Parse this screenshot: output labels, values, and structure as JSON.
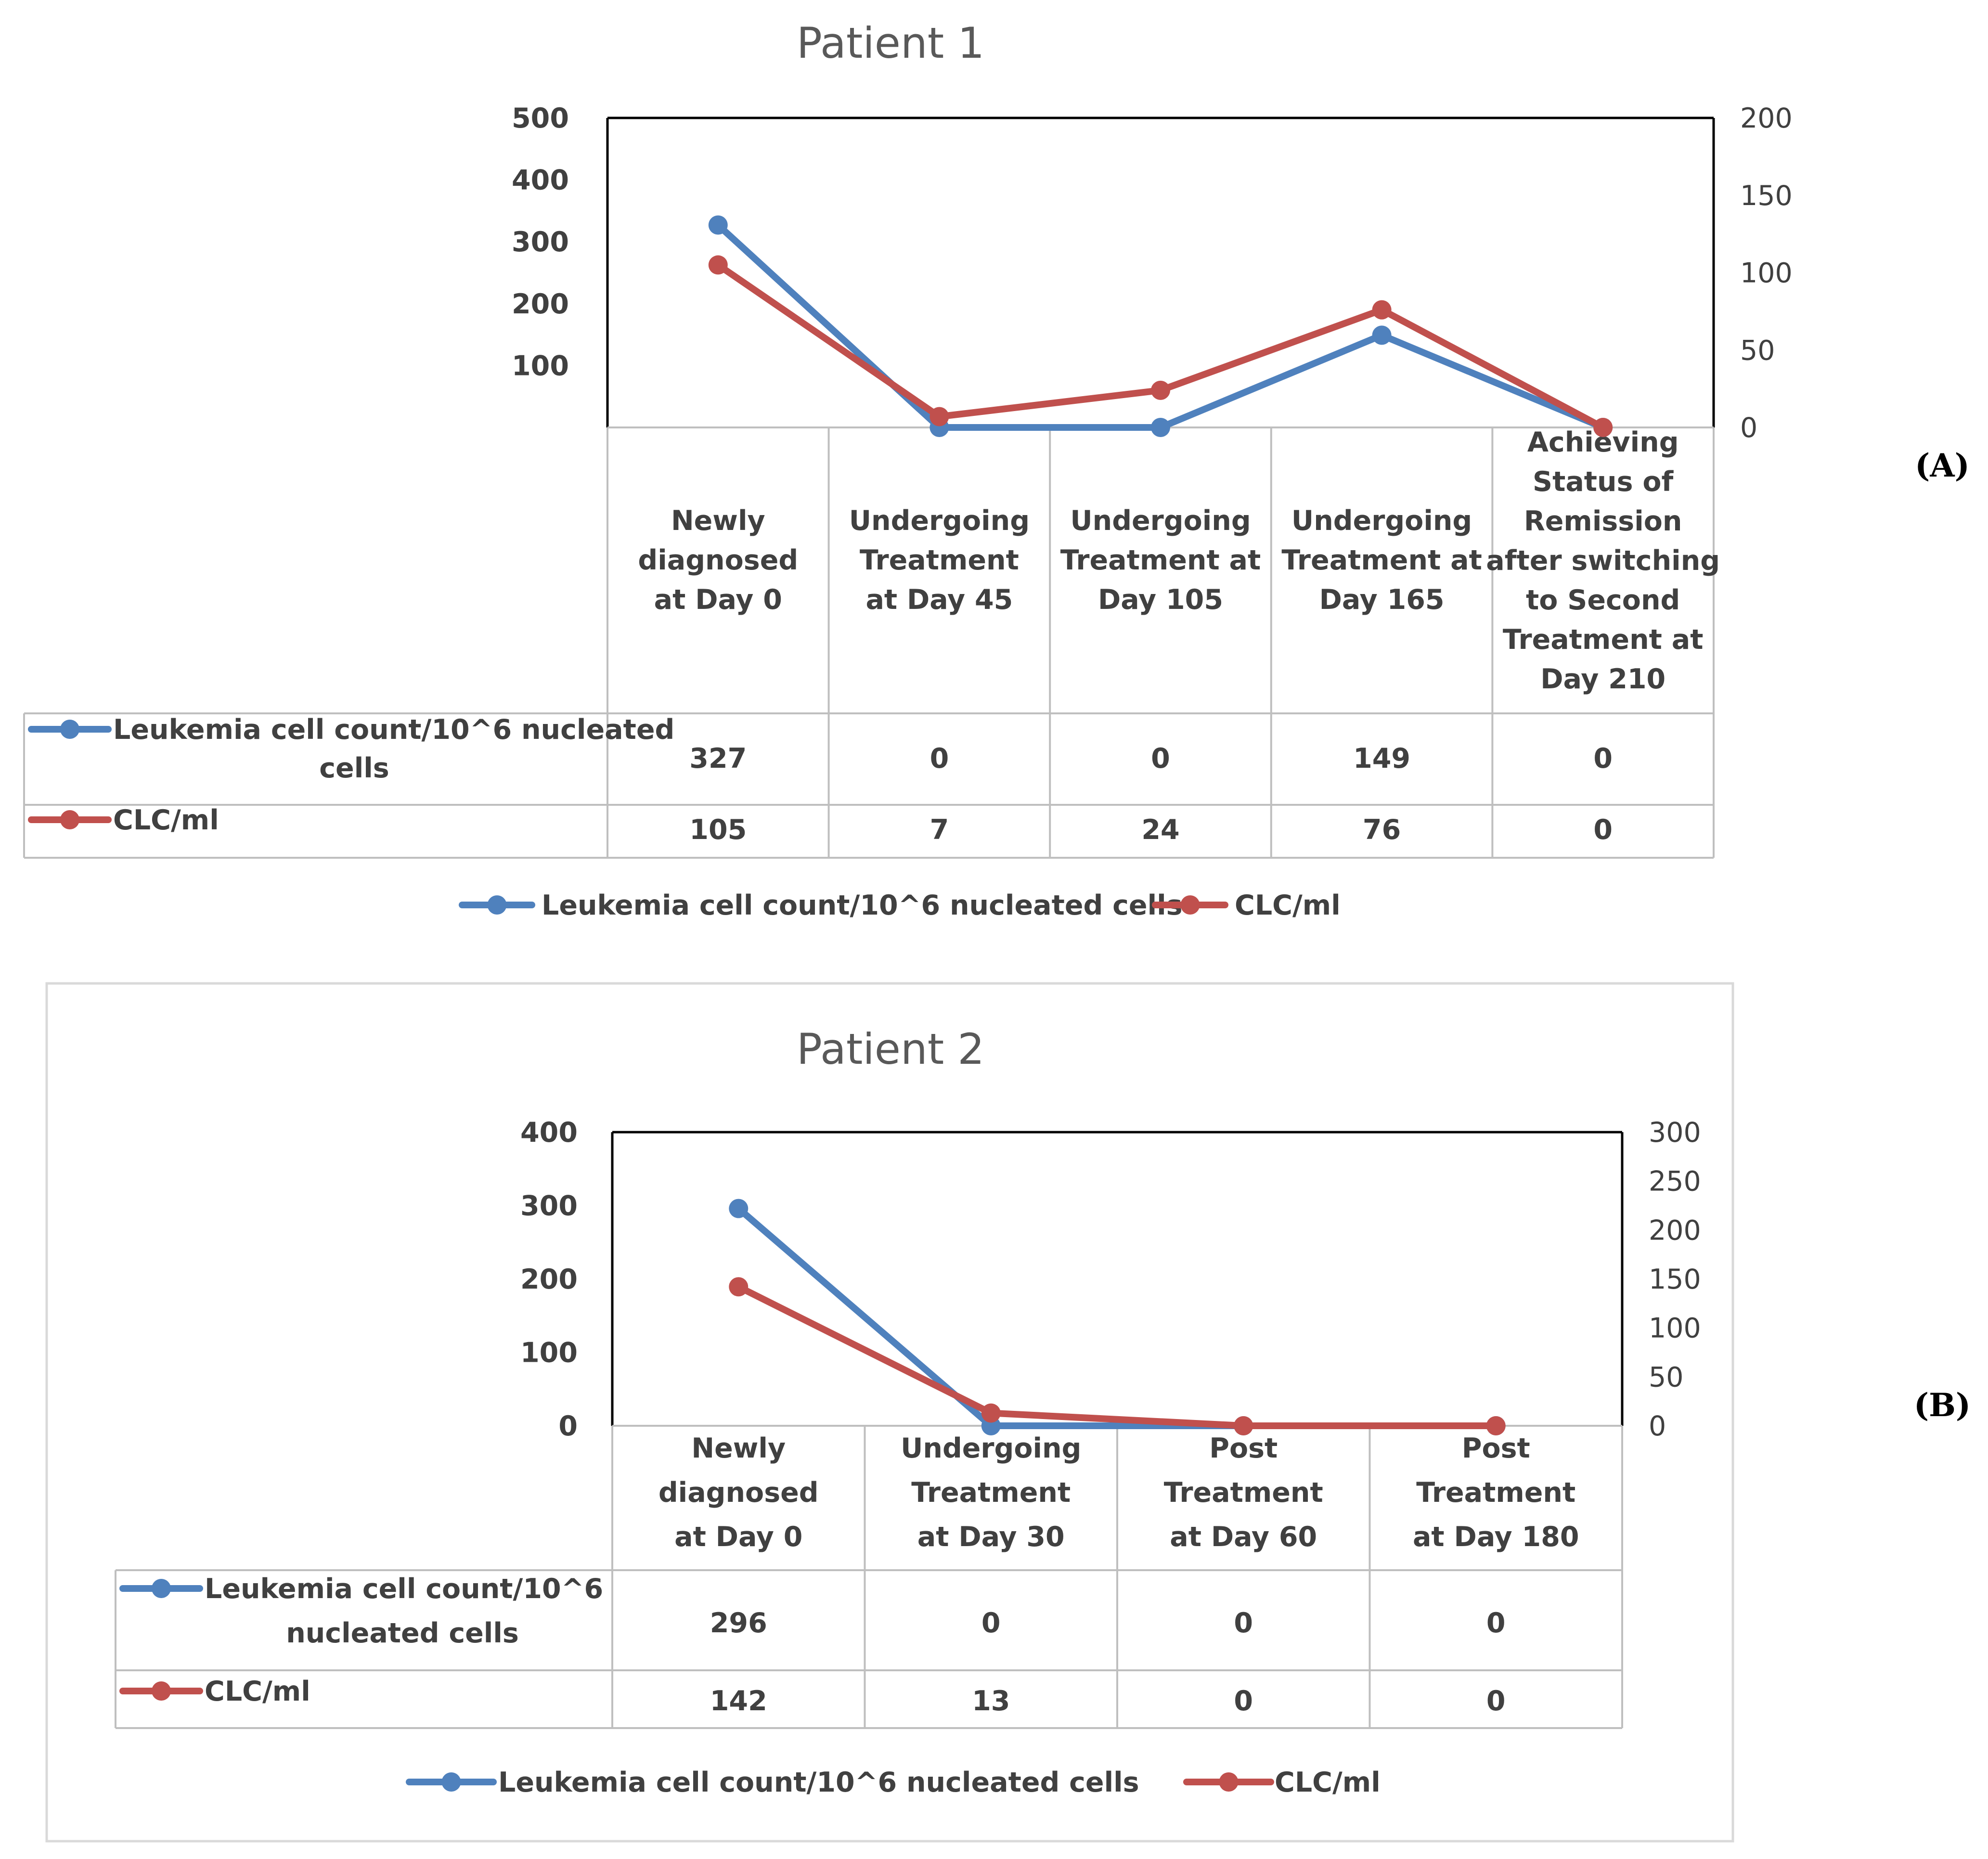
{
  "chart_data": [
    {
      "type": "line",
      "title": "Patient 1",
      "panel_label": "(A)",
      "categories": [
        [
          "Newly",
          "diagnosed",
          "at Day 0"
        ],
        [
          "Undergoing",
          "Treatment",
          "at Day 45"
        ],
        [
          "Undergoing",
          "Treatment at",
          "Day 105"
        ],
        [
          "Undergoing",
          "Treatment at",
          "Day 165"
        ],
        [
          "Achieving",
          "Status of",
          "Remission",
          "after switching",
          "to Second",
          "Treatment at",
          "Day 210"
        ]
      ],
      "series": [
        {
          "name": "Leukemia cell count/10^6 nucleated cells",
          "table_label": [
            "Leukemia cell count/10^6 nucleated",
            "cells"
          ],
          "axis": "left",
          "color": "#4F81BD",
          "values": [
            327,
            0,
            0,
            149,
            0
          ]
        },
        {
          "name": "CLC/ml",
          "table_label": [
            "CLC/ml"
          ],
          "axis": "right",
          "color": "#C0504D",
          "values": [
            105,
            7,
            24,
            76,
            0
          ]
        }
      ],
      "y_left": {
        "range": [
          0,
          500
        ],
        "ticks": [
          "100",
          "200",
          "300",
          "400",
          "500"
        ]
      },
      "y_right": {
        "range": [
          0,
          200
        ],
        "ticks": [
          "0",
          "50",
          "100",
          "150",
          "200"
        ]
      }
    },
    {
      "type": "line",
      "title": "Patient 2",
      "panel_label": "(B)",
      "categories": [
        [
          "Newly",
          "diagnosed",
          "at Day 0"
        ],
        [
          "Undergoing",
          "Treatment",
          "at Day 30"
        ],
        [
          "Post",
          "Treatment",
          "at Day 60"
        ],
        [
          "Post",
          "Treatment",
          "at Day 180"
        ]
      ],
      "series": [
        {
          "name": "Leukemia cell count/10^6 nucleated cells",
          "table_label": [
            "Leukemia cell count/10^6",
            "nucleated cells"
          ],
          "axis": "left",
          "color": "#4F81BD",
          "values": [
            296,
            0,
            0,
            0
          ]
        },
        {
          "name": "CLC/ml",
          "table_label": [
            "CLC/ml"
          ],
          "axis": "right",
          "color": "#C0504D",
          "values": [
            142,
            13,
            0,
            0
          ]
        }
      ],
      "y_left": {
        "range": [
          0,
          400
        ],
        "ticks": [
          "0",
          "100",
          "200",
          "300",
          "400"
        ]
      },
      "y_right": {
        "range": [
          0,
          300
        ],
        "ticks": [
          "0",
          "50",
          "100",
          "150",
          "200",
          "250",
          "300"
        ]
      }
    }
  ]
}
